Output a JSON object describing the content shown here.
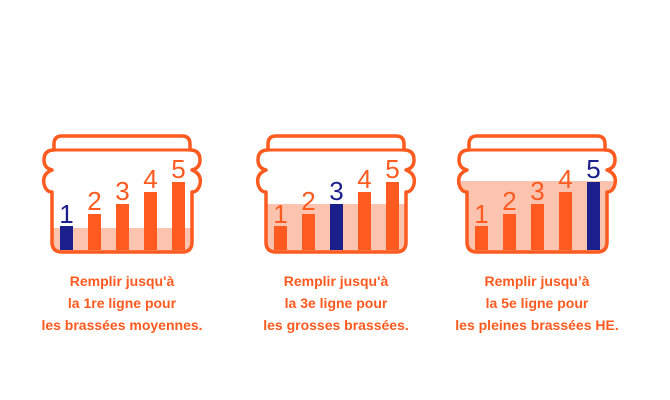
{
  "colors": {
    "orange": "#ff5a1f",
    "fill": "#fcc4af",
    "navy": "#1a1f8c"
  },
  "level_labels": [
    "1",
    "2",
    "3",
    "4",
    "5"
  ],
  "panels": [
    {
      "highlight_level": 1,
      "caption_lines": [
        "Remplir jusqu'à",
        "la 1re ligne pour",
        "les brassées moyennes."
      ]
    },
    {
      "highlight_level": 3,
      "caption_lines": [
        "Remplir jusqu'à",
        "la 3e ligne pour",
        "les grosses brassées."
      ]
    },
    {
      "highlight_level": 5,
      "caption_lines": [
        "Remplir jusqu’à",
        "la 5e ligne pour",
        "les pleines brassées HE."
      ]
    }
  ]
}
